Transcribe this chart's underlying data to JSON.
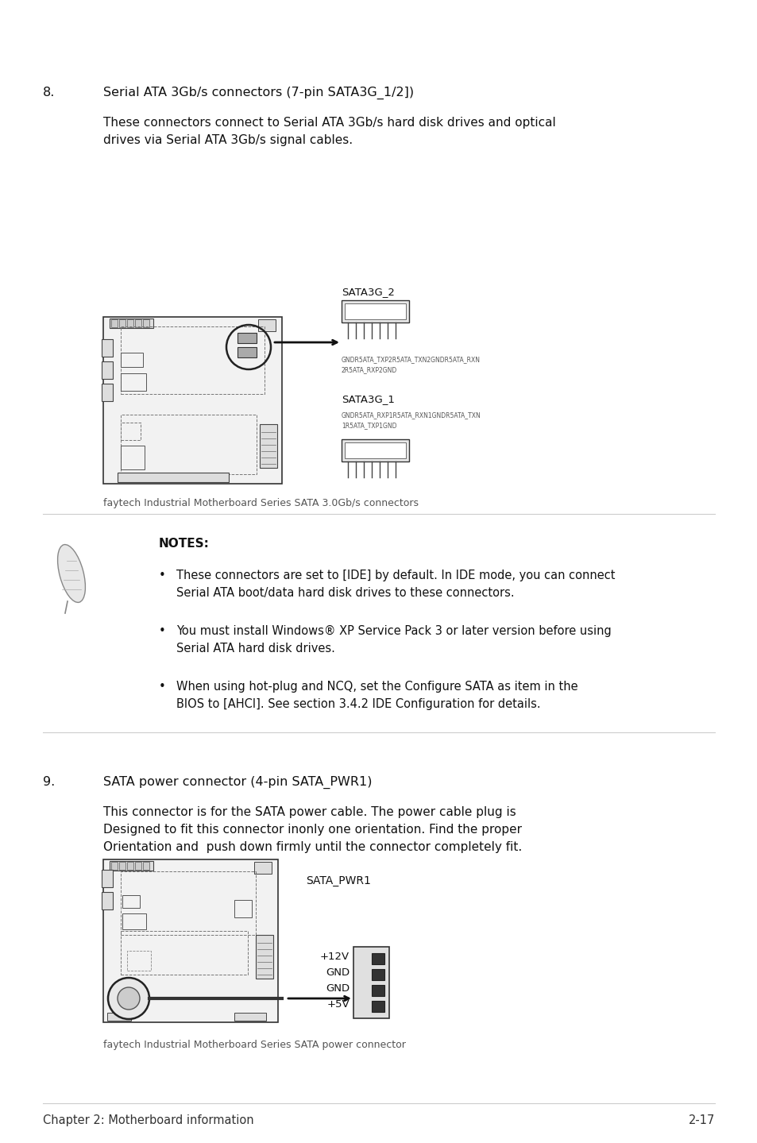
{
  "bg_color": "#ffffff",
  "section8_num": "8.",
  "section8_title": "Serial ATA 3Gb/s connectors (7-pin SATA3G_1/2])",
  "section8_desc1": "These connectors connect to Serial ATA 3Gb/s hard disk drives and optical",
  "section8_desc2": "drives via Serial ATA 3Gb/s signal cables.",
  "fig1_caption": "faytech Industrial Motherboard Series SATA 3.0Gb/s connectors",
  "sata3g2_label": "SATA3G_2",
  "sata3g1_label": "SATA3G_1",
  "sata3g2_pins_line1": "GNDR5ATA_TXP2R5ATA_TXN2GNDR5ATA_RXN",
  "sata3g2_pins_line2": "2R5ATA_RXP2GND",
  "sata3g1_pins_line1": "GNDR5ATA_RXP1R5ATA_RXN1GNDR5ATA_TXN",
  "sata3g1_pins_line2": "1R5ATA_TXP1GND",
  "notes_title": "NOTES:",
  "note1_line1": "These connectors are set to [IDE] by default. In IDE mode, you can connect",
  "note1_line2": "Serial ATA boot/data hard disk drives to these connectors.",
  "note2_line1": "You must install Windows® XP Service Pack 3 or later version before using",
  "note2_line2": "Serial ATA hard disk drives.",
  "note3_line1": "When using hot-plug and NCQ, set the Configure SATA as item in the",
  "note3_line2": "BIOS to [AHCI]. See section 3.4.2 IDE Configuration for details.",
  "section9_num": "9.",
  "section9_title": "SATA power connector (4-pin SATA_PWR1)",
  "section9_desc1": "This connector is for the SATA power cable. The power cable plug is",
  "section9_desc2": "Designed to fit this connector inonly one orientation. Find the proper",
  "section9_desc3": "Orientation and  push down firmly until the connector completely fit.",
  "fig2_caption": "faytech Industrial Motherboard Series SATA power connector",
  "sata_pwr_label": "SATA_PWR1",
  "sata_pwr_pins": [
    "+5V",
    "GND",
    "GND",
    "+12V"
  ],
  "footer_left": "Chapter 2: Motherboard information",
  "footer_right": "2-17",
  "sep_color": "#cccccc",
  "text_dark": "#111111",
  "text_mid": "#444444",
  "text_light": "#666666",
  "board_edge": "#333333",
  "board_face": "#f5f5f5",
  "board_inner": "#777777"
}
